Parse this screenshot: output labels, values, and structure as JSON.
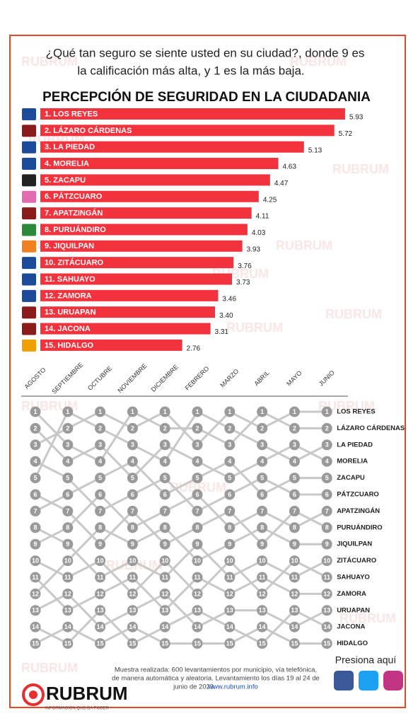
{
  "question": [
    "¿Qué tan seguro se siente usted en su ciudad?, donde 9 es",
    "la calificación más alta, y  1 es la más baja."
  ],
  "watermark": "RUBRUM",
  "chart_data": [
    {
      "type": "bar",
      "title": "PERCEPCIÓN DE SEGURIDAD EN LA CIUDADANIA",
      "categories": [
        "1. LOS REYES",
        "2. LÁZARO CÁRDENAS",
        "3. LA PIEDAD",
        "4. MORELIA",
        "5. ZACAPU",
        "6. PÁTZCUARO",
        "7. APATZINGÁN",
        "8. PURUÁNDIRO",
        "9. JIQUILPAN",
        "10. ZITÁCUARO",
        "11. SAHUAYO",
        "12. ZAMORA",
        "13. URUAPAN",
        "14. JACONA",
        "15. HIDALGO"
      ],
      "values": [
        5.93,
        5.72,
        5.13,
        4.63,
        4.47,
        4.25,
        4.11,
        4.03,
        3.93,
        3.76,
        3.73,
        3.46,
        3.4,
        3.31,
        2.76
      ],
      "value_labels": [
        "5.93",
        "5.72",
        "5.13",
        "4.63",
        "4.47",
        "4.25",
        "4.11",
        "4.03",
        "3.93",
        "3.76",
        "3.73",
        "3.46",
        "3.40",
        "3.31",
        "2.76"
      ],
      "color": "#f2323c",
      "xlim": [
        0,
        6
      ]
    },
    {
      "type": "bump",
      "categories": [
        "AGOSTO",
        "SEPTIEMBRE",
        "OCTUBRE",
        "NOVIEMBRE",
        "DICIEMBRE",
        "FEBRERO",
        "MARZO",
        "ABRIL",
        "MAYO",
        "JUNIO"
      ],
      "ranks": [
        1,
        2,
        3,
        4,
        5,
        6,
        7,
        8,
        9,
        10,
        11,
        12,
        13,
        14,
        15
      ],
      "color": "#c8c8c8",
      "series": [
        {
          "name": "LOS REYES",
          "values": [
            3,
            2,
            1,
            2,
            1,
            3,
            1,
            2,
            1,
            1
          ]
        },
        {
          "name": "LÁZARO CÁRDENAS",
          "values": [
            1,
            3,
            4,
            1,
            2,
            2,
            3,
            1,
            2,
            2
          ]
        },
        {
          "name": "LA PIEDAD",
          "values": [
            5,
            1,
            2,
            3,
            4,
            1,
            2,
            3,
            4,
            3
          ]
        },
        {
          "name": "MORELIA",
          "values": [
            2,
            4,
            3,
            5,
            3,
            4,
            5,
            4,
            3,
            4
          ]
        },
        {
          "name": "ZACAPU",
          "values": [
            7,
            6,
            5,
            4,
            6,
            5,
            4,
            6,
            5,
            5
          ]
        },
        {
          "name": "PÁTZCUARO",
          "values": [
            4,
            5,
            7,
            6,
            5,
            7,
            6,
            5,
            6,
            6
          ]
        },
        {
          "name": "APATZINGÁN",
          "values": [
            9,
            8,
            6,
            8,
            7,
            6,
            8,
            7,
            8,
            7
          ]
        },
        {
          "name": "PURUÁNDIRO",
          "values": [
            6,
            7,
            9,
            7,
            9,
            8,
            7,
            9,
            7,
            8
          ]
        },
        {
          "name": "JIQUILPAN",
          "values": [
            12,
            10,
            8,
            9,
            8,
            10,
            9,
            8,
            9,
            9
          ]
        },
        {
          "name": "ZITÁCUARO",
          "values": [
            8,
            9,
            11,
            10,
            11,
            9,
            11,
            10,
            11,
            10
          ]
        },
        {
          "name": "SAHUAYO",
          "values": [
            10,
            11,
            10,
            12,
            10,
            12,
            10,
            12,
            10,
            11
          ]
        },
        {
          "name": "ZAMORA",
          "values": [
            11,
            13,
            12,
            11,
            13,
            11,
            12,
            11,
            12,
            12
          ]
        },
        {
          "name": "URUAPAN",
          "values": [
            13,
            12,
            14,
            13,
            12,
            14,
            13,
            13,
            14,
            13
          ]
        },
        {
          "name": "JACONA",
          "values": [
            14,
            15,
            13,
            15,
            14,
            13,
            14,
            15,
            13,
            14
          ]
        },
        {
          "name": "HIDALGO",
          "values": [
            15,
            14,
            15,
            14,
            15,
            15,
            15,
            14,
            15,
            15
          ]
        }
      ]
    }
  ],
  "footer": {
    "note": [
      "Muestra realizada: 600 levantamientos por municipio, vía telefónica,",
      "de manera automática y aleatoria. Levantamiento los días 19 al 24 de",
      "junio de 2023."
    ],
    "link": "www.rubrum.info",
    "cta": "Presiona aquí",
    "brand": "RUBRUM",
    "tagline": "INFORMACIÓN QUE DA PODER"
  }
}
